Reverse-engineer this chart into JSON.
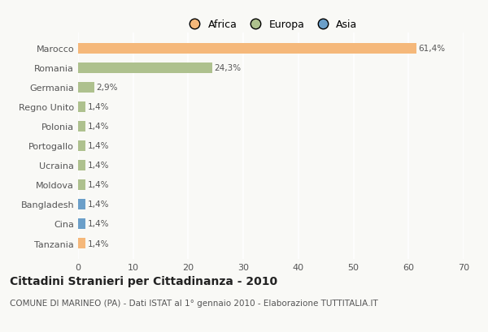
{
  "categories": [
    "Tanzania",
    "Cina",
    "Bangladesh",
    "Moldova",
    "Ucraina",
    "Portogallo",
    "Polonia",
    "Regno Unito",
    "Germania",
    "Romania",
    "Marocco"
  ],
  "values": [
    1.4,
    1.4,
    1.4,
    1.4,
    1.4,
    1.4,
    1.4,
    1.4,
    2.9,
    24.3,
    61.4
  ],
  "colors": [
    "#f5b87a",
    "#6b9fc9",
    "#6b9fc9",
    "#aec18e",
    "#aec18e",
    "#aec18e",
    "#aec18e",
    "#aec18e",
    "#aec18e",
    "#aec18e",
    "#f5b87a"
  ],
  "labels": [
    "1,4%",
    "1,4%",
    "1,4%",
    "1,4%",
    "1,4%",
    "1,4%",
    "1,4%",
    "1,4%",
    "2,9%",
    "24,3%",
    "61,4%"
  ],
  "legend": [
    {
      "label": "Africa",
      "color": "#f5b87a"
    },
    {
      "label": "Europa",
      "color": "#aec18e"
    },
    {
      "label": "Asia",
      "color": "#6b9fc9"
    }
  ],
  "xlim": [
    0,
    70
  ],
  "xticks": [
    0,
    10,
    20,
    30,
    40,
    50,
    60,
    70
  ],
  "title": "Cittadini Stranieri per Cittadinanza - 2010",
  "subtitle": "COMUNE DI MARINEO (PA) - Dati ISTAT al 1° gennaio 2010 - Elaborazione TUTTITALIA.IT",
  "bg_color": "#f9f9f6",
  "grid_color": "#ffffff",
  "title_fontsize": 10,
  "subtitle_fontsize": 7.5,
  "label_fontsize": 7.5,
  "tick_fontsize": 8,
  "legend_fontsize": 9
}
